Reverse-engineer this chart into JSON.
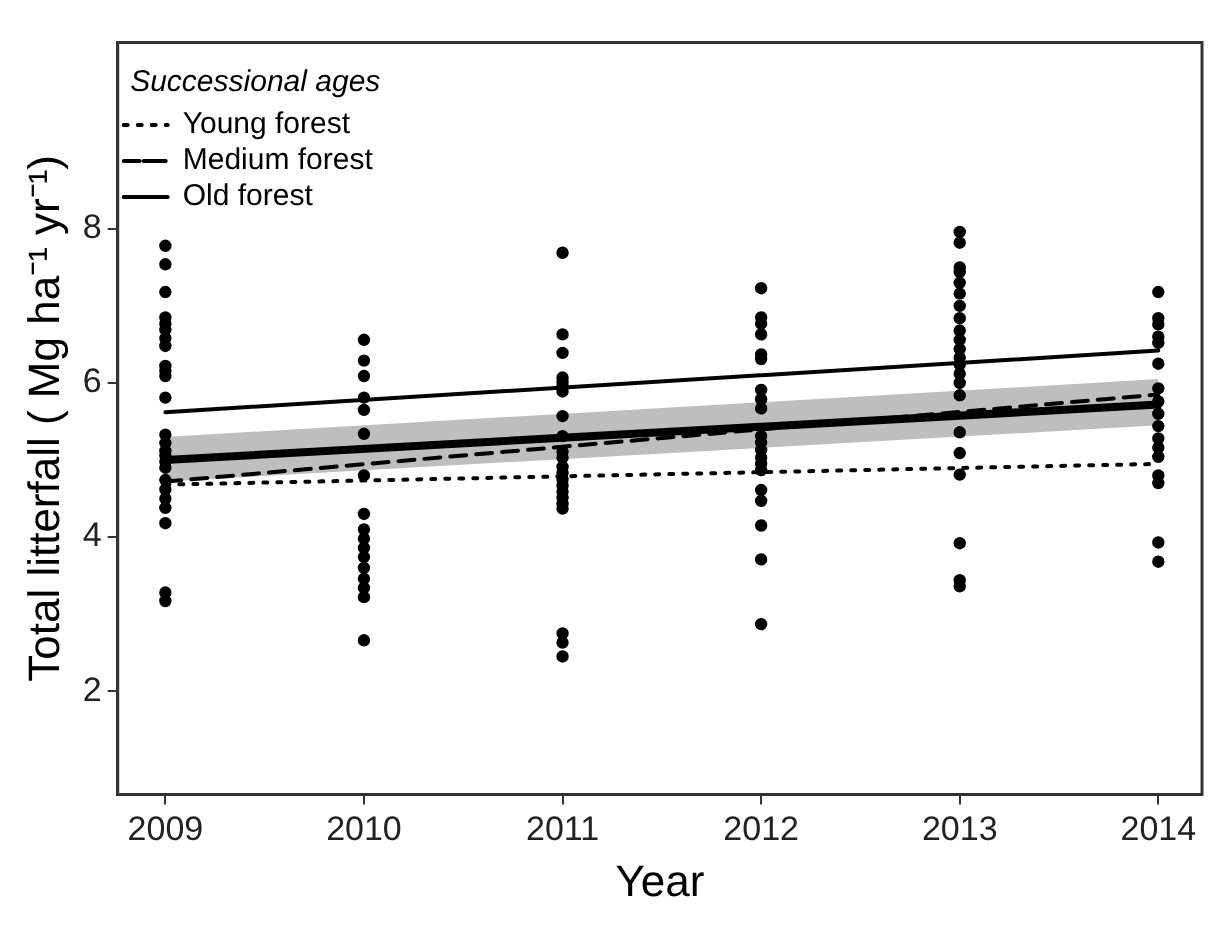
{
  "chart_data": {
    "type": "scatter",
    "xlabel": "Year",
    "ylabel": "Total litterfall ( Mg ha⁻¹ yr⁻¹)",
    "legend_title": "Successional ages",
    "legend": "top left",
    "grid": false,
    "xlim": [
      2008.76,
      2014.22
    ],
    "xticks": [
      2009,
      2010,
      2011,
      2012,
      2013,
      2014
    ],
    "ylim": [
      0.66,
      10.42
    ],
    "yticks": [
      2,
      4,
      6,
      8
    ],
    "series": [
      {
        "type": "scatter",
        "color": "#000000",
        "marker": "circle",
        "x": [
          2009,
          2009,
          2009,
          2009,
          2009,
          2009,
          2009,
          2009,
          2009,
          2009,
          2009,
          2009,
          2009,
          2009,
          2009,
          2009,
          2009,
          2009,
          2009,
          2009,
          2009,
          2009,
          2009,
          2009,
          2009,
          2010,
          2010,
          2010,
          2010,
          2010,
          2010,
          2010,
          2010,
          2010,
          2010,
          2010,
          2010,
          2010,
          2010,
          2010,
          2010,
          2010,
          2011,
          2011,
          2011,
          2011,
          2011,
          2011,
          2011,
          2011,
          2011,
          2011,
          2011,
          2011,
          2011,
          2011,
          2011,
          2011,
          2011,
          2011,
          2011,
          2011,
          2011,
          2011,
          2012,
          2012,
          2012,
          2012,
          2012,
          2012,
          2012,
          2012,
          2012,
          2012,
          2012,
          2012,
          2012,
          2012,
          2012,
          2012,
          2012,
          2012,
          2012,
          2012,
          2013,
          2013,
          2013,
          2013,
          2013,
          2013,
          2013,
          2013,
          2013,
          2013,
          2013,
          2013,
          2013,
          2013,
          2013,
          2013,
          2013,
          2013,
          2013,
          2013,
          2013,
          2013,
          2014,
          2014,
          2014,
          2014,
          2014,
          2014,
          2014,
          2014,
          2014,
          2014,
          2014,
          2014,
          2014,
          2014,
          2014,
          2014,
          2014
        ],
        "values": [
          7.78,
          7.54,
          7.18,
          6.85,
          6.77,
          6.69,
          6.58,
          6.48,
          6.22,
          6.16,
          6.09,
          5.81,
          5.33,
          5.22,
          5.12,
          5.06,
          4.98,
          4.9,
          4.74,
          4.62,
          4.5,
          4.38,
          4.18,
          3.28,
          3.17,
          6.56,
          6.29,
          6.09,
          5.81,
          5.65,
          5.34,
          4.8,
          4.3,
          4.1,
          3.98,
          3.86,
          3.74,
          3.6,
          3.46,
          3.34,
          3.22,
          2.66,
          7.69,
          6.63,
          6.39,
          6.07,
          6.01,
          5.95,
          5.89,
          5.57,
          5.31,
          5.11,
          5.03,
          4.91,
          4.83,
          4.75,
          4.67,
          4.59,
          4.51,
          4.43,
          4.37,
          2.75,
          2.63,
          2.45,
          7.23,
          6.85,
          6.77,
          6.63,
          6.37,
          6.31,
          5.91,
          5.79,
          5.67,
          5.31,
          5.23,
          5.13,
          5.03,
          4.95,
          4.87,
          4.61,
          4.47,
          4.15,
          3.71,
          2.87,
          7.96,
          7.82,
          7.5,
          7.44,
          7.3,
          7.16,
          7.0,
          6.84,
          6.68,
          6.56,
          6.44,
          6.33,
          6.24,
          6.12,
          6.0,
          5.84,
          5.36,
          5.09,
          4.81,
          3.92,
          3.44,
          3.36,
          7.18,
          6.84,
          6.76,
          6.6,
          6.52,
          6.25,
          5.93,
          5.76,
          5.6,
          5.44,
          5.28,
          5.16,
          5.04,
          4.8,
          4.7,
          3.93,
          3.68
        ]
      },
      {
        "type": "line",
        "name": "Young forest",
        "color": "#000000",
        "line_style": "dotted",
        "x": [
          2009,
          2014
        ],
        "values": [
          4.68,
          4.95
        ]
      },
      {
        "type": "line",
        "name": "Medium forest",
        "color": "#000000",
        "line_style": "dashed",
        "x": [
          2009,
          2014
        ],
        "values": [
          4.72,
          5.85
        ]
      },
      {
        "type": "line",
        "name": "Old forest",
        "color": "#000000",
        "line_style": "solid",
        "x": [
          2009,
          2014
        ],
        "values": [
          5.62,
          6.42
        ]
      },
      {
        "type": "line",
        "color": "#000000",
        "line_style": "solid",
        "x": [
          2009,
          2014
        ],
        "values": [
          5.0,
          5.72
        ],
        "lower": [
          4.72,
          5.45
        ],
        "upper": [
          5.3,
          6.05
        ]
      }
    ]
  }
}
